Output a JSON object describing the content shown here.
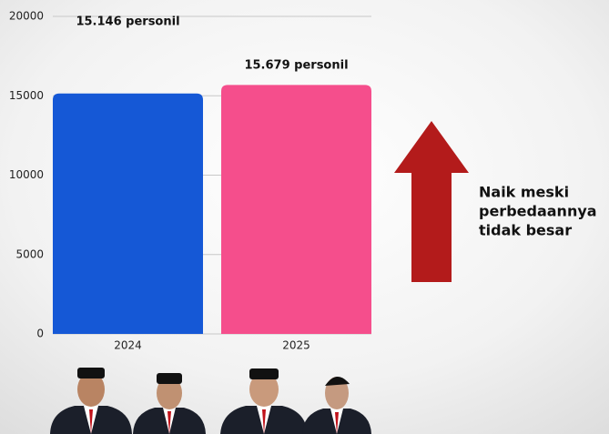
{
  "chart_data": {
    "type": "bar",
    "categories": [
      "2024",
      "2025"
    ],
    "values": [
      15146,
      15679
    ],
    "value_labels": [
      "15.146 personil",
      "15.679 personil"
    ],
    "colors": [
      "#1558d6",
      "#f54e8c"
    ],
    "ylim": [
      0,
      20000
    ],
    "yticks": [
      0,
      5000,
      10000,
      15000,
      20000
    ],
    "grid": true,
    "annotation": [
      "Naik meski",
      "perbedaannya",
      "tidak besar"
    ],
    "arrow_color": "#b31b1b"
  }
}
